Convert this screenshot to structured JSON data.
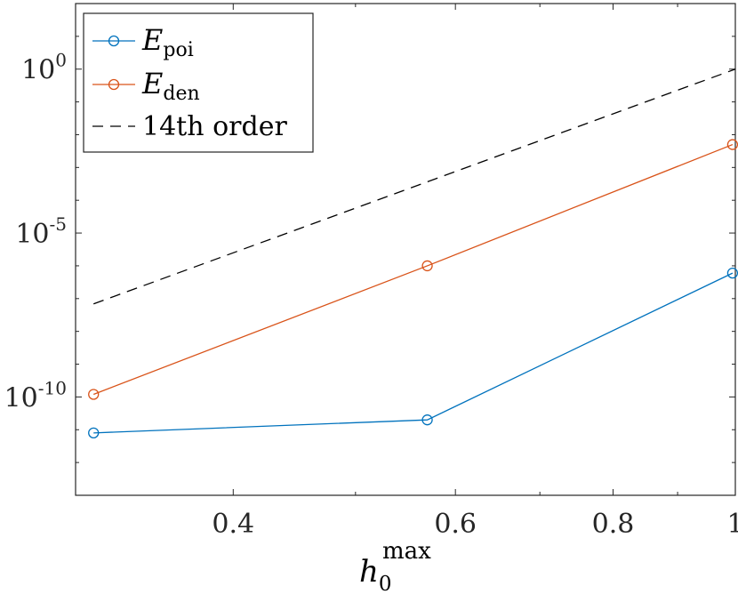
{
  "chart_data": {
    "type": "line",
    "xscale": "log",
    "yscale": "log",
    "xlim": [
      0.3,
      1.0
    ],
    "ylim": [
      1e-13,
      100.0
    ],
    "grid": false,
    "legend_position": "top-left",
    "xticks": [
      0.4,
      0.6,
      0.8,
      1
    ],
    "xtick_labels": [
      "0.4",
      "0.6",
      "0.8",
      "1"
    ],
    "yticks": [
      1e-10,
      1e-05,
      1
    ],
    "ytick_labels": [
      {
        "base": "10",
        "exp": "-10"
      },
      {
        "base": "10",
        "exp": "-5"
      },
      {
        "base": "10",
        "exp": "0"
      }
    ],
    "xlabel": {
      "base": "h",
      "sub": "0",
      "sup": "max"
    },
    "ylabel": "",
    "series": [
      {
        "name": {
          "base": "E",
          "sub": "poi"
        },
        "color": "#0072BD",
        "marker": "circle",
        "x": [
          0.31,
          0.57,
          0.995
        ],
        "y": [
          8e-12,
          2e-11,
          6e-07
        ]
      },
      {
        "name": {
          "base": "E",
          "sub": "den"
        },
        "color": "#D95319",
        "marker": "circle",
        "x": [
          0.31,
          0.57,
          0.995
        ],
        "y": [
          1.2e-10,
          1e-06,
          0.005
        ]
      },
      {
        "name": {
          "base": "14th order"
        },
        "color": "#000000",
        "dash": "dashed",
        "x": [
          0.31,
          1.0
        ],
        "y": [
          6.88e-08,
          1.0
        ]
      }
    ]
  }
}
